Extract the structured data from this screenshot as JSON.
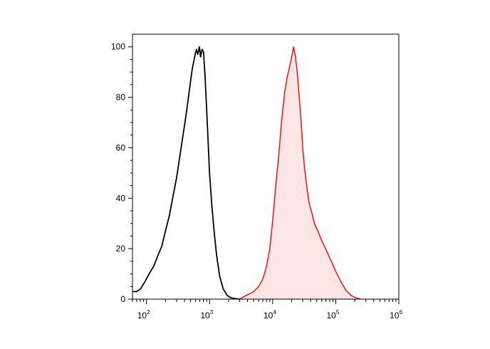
{
  "chart_data": {
    "type": "area",
    "title": "",
    "xlabel": "",
    "ylabel": "",
    "x_scale": "log",
    "xlim": [
      60,
      1000000
    ],
    "ylim": [
      0,
      105
    ],
    "grid": false,
    "y_ticks": [
      "0",
      "20",
      "40",
      "60",
      "80",
      "100"
    ],
    "x_ticks": [
      {
        "base": "10",
        "exp": "2",
        "value": 100
      },
      {
        "base": "10",
        "exp": "3",
        "value": 1000
      },
      {
        "base": "10",
        "exp": "4",
        "value": 10000
      },
      {
        "base": "10",
        "exp": "5",
        "value": 100000
      },
      {
        "base": "10",
        "exp": "6",
        "value": 1000000
      }
    ],
    "series": [
      {
        "color": "#000000",
        "fill": "none",
        "x": [
          60,
          70,
          80,
          95,
          110,
          130,
          150,
          175,
          200,
          230,
          260,
          300,
          340,
          380,
          430,
          480,
          530,
          580,
          620,
          650,
          690,
          720,
          760,
          800,
          850,
          900,
          950,
          1000,
          1080,
          1180,
          1300,
          1450,
          1650,
          1900,
          2200,
          2600,
          3000
        ],
        "y": [
          3,
          3,
          4,
          7,
          10,
          13,
          17,
          21,
          27,
          33,
          40,
          48,
          57,
          65,
          74,
          83,
          91,
          96,
          99,
          97,
          100,
          96,
          99,
          98,
          88,
          75,
          62,
          50,
          38,
          27,
          17,
          9,
          4,
          1.5,
          0.5,
          0.2,
          0
        ]
      },
      {
        "color": "#ff0000",
        "fill": "#fde6e6",
        "x": [
          3000,
          3500,
          4200,
          5000,
          6000,
          7000,
          8000,
          9000,
          10000,
          11000,
          12500,
          14000,
          15500,
          17000,
          18500,
          20000,
          21500,
          23000,
          24500,
          26000,
          28000,
          30000,
          32000,
          35000,
          38000,
          42000,
          46000,
          52000,
          58000,
          66000,
          75000,
          85000,
          100000,
          120000,
          145000,
          175000,
          210000,
          250000
        ],
        "y": [
          0,
          1,
          2,
          3,
          5,
          8,
          13,
          20,
          31,
          43,
          57,
          72,
          82,
          88,
          92,
          96,
          100,
          96,
          90,
          82,
          72,
          60,
          52,
          44,
          38,
          34,
          30,
          27,
          24,
          21,
          18,
          15,
          11,
          7,
          3.5,
          1.5,
          0.5,
          0
        ]
      }
    ]
  }
}
